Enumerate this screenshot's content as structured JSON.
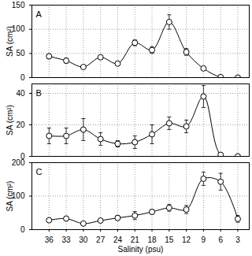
{
  "chart_data": [
    {
      "type": "line",
      "title": "A",
      "ylabel": "SA (cm²)",
      "marker": "circle",
      "line_style": "solid",
      "grid": true,
      "tick_labels": "y",
      "x": [
        36,
        33,
        30,
        27,
        24,
        21,
        18,
        15,
        12,
        9,
        6,
        3
      ],
      "values": [
        44,
        35,
        22,
        42,
        29,
        72,
        57,
        115,
        53,
        19,
        1,
        0
      ],
      "error": [
        5,
        5,
        2,
        2,
        3,
        6,
        7,
        15,
        7,
        3,
        0,
        0
      ],
      "xlim": [
        39,
        1
      ],
      "xticks": [
        36,
        33,
        30,
        27,
        24,
        21,
        18,
        15,
        12,
        9,
        6,
        3
      ],
      "ylim": [
        0,
        150
      ],
      "yticks": [
        0,
        50,
        100,
        150
      ]
    },
    {
      "type": "line",
      "title": "B",
      "ylabel": "SA (cm²)",
      "marker": "circle",
      "line_style": "solid",
      "grid": true,
      "tick_labels": "y",
      "x": [
        36,
        33,
        30,
        27,
        24,
        21,
        18,
        15,
        12,
        9,
        6,
        3
      ],
      "values": [
        13,
        13,
        17,
        11,
        8,
        9,
        14,
        21,
        19,
        38,
        1,
        0
      ],
      "error": [
        5,
        5,
        7,
        4,
        2,
        4,
        6,
        4,
        4,
        7,
        0,
        0
      ],
      "xlim": [
        39,
        1
      ],
      "xticks": [
        36,
        33,
        30,
        27,
        24,
        21,
        18,
        15,
        12,
        9,
        6,
        3
      ],
      "ylim": [
        0,
        46
      ],
      "yticks": [
        0,
        20,
        40
      ]
    },
    {
      "type": "line",
      "title": "C",
      "ylabel": "SA (cm²)",
      "xlabel": "Salinity (psu)",
      "marker": "circle",
      "line_style": "solid",
      "grid": true,
      "tick_labels": true,
      "x": [
        36,
        33,
        30,
        27,
        24,
        21,
        18,
        15,
        12,
        9,
        6,
        3
      ],
      "values": [
        28,
        33,
        18,
        27,
        35,
        42,
        53,
        65,
        60,
        152,
        143,
        32
      ],
      "error": [
        5,
        4,
        3,
        3,
        7,
        12,
        7,
        10,
        12,
        20,
        25,
        10
      ],
      "xlim": [
        39,
        1
      ],
      "xticks": [
        36,
        33,
        30,
        27,
        24,
        21,
        18,
        15,
        12,
        9,
        6,
        3
      ],
      "ylim": [
        0,
        200
      ],
      "yticks": [
        0,
        100,
        200
      ]
    }
  ]
}
